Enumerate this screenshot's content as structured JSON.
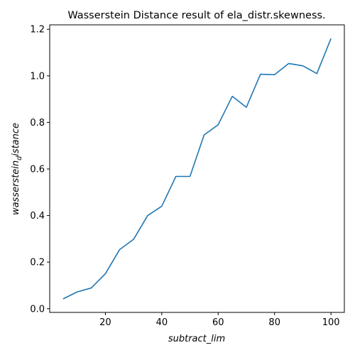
{
  "chart_data": {
    "type": "line",
    "title": "Wasserstein Distance result of ela_distr.skewness.",
    "xlabel": "subtract_lim",
    "ylabel_main": "wasserstein",
    "ylabel_sub": "d",
    "ylabel_rest": "istance",
    "xlim": [
      0.25,
      104.75
    ],
    "ylim": [
      -0.016,
      1.219
    ],
    "xticks": [
      20,
      40,
      60,
      80,
      100
    ],
    "yticks": [
      0.0,
      0.2,
      0.4,
      0.6,
      0.8,
      1.0,
      1.2
    ],
    "xtick_labels": [
      "20",
      "40",
      "60",
      "80",
      "100"
    ],
    "ytick_labels": [
      "0.0",
      "0.2",
      "0.4",
      "0.6",
      "0.8",
      "1.0",
      "1.2"
    ],
    "grid": false,
    "line_color": "#1f77b4",
    "series": [
      {
        "name": "wasserstein_distance",
        "x": [
          5,
          10,
          15,
          20,
          25,
          30,
          35,
          40,
          45,
          50,
          55,
          60,
          65,
          70,
          75,
          80,
          85,
          90,
          95,
          100
        ],
        "values": [
          0.042,
          0.072,
          0.089,
          0.15,
          0.253,
          0.298,
          0.4,
          0.44,
          0.568,
          0.568,
          0.746,
          0.79,
          0.912,
          0.865,
          1.007,
          1.005,
          1.053,
          1.043,
          1.01,
          1.16
        ]
      }
    ]
  }
}
